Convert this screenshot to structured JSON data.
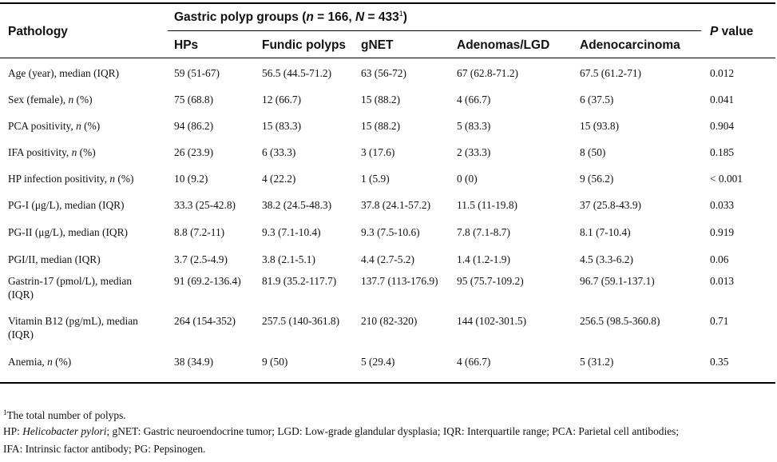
{
  "header": {
    "pathology": "Pathology",
    "group_title_prefix": "Gastric polyp groups (",
    "n_var": "n",
    "n_eq": " = 166, ",
    "N_var": "N",
    "N_eq": " = 433",
    "N_sup": "1",
    "group_title_suffix": ")",
    "p_var": "P",
    "p_rest": " value",
    "columns": [
      "HPs",
      "Fundic polyps",
      "gNET",
      "Adenomas/LGD",
      "Adenocarcinoma"
    ]
  },
  "rows": [
    {
      "label": "Age (year), median (IQR)",
      "label_var": "",
      "label_end": "",
      "values": [
        "59 (51-67)",
        "56.5 (44.5-71.2)",
        "63 (56-72)",
        "67 (62.8-71.2)",
        "67.5 (61.2-71)"
      ],
      "p": "0.012"
    },
    {
      "label": "Sex (female), ",
      "label_var": "n",
      "label_end": " (%)",
      "values": [
        "75 (68.8)",
        "12 (66.7)",
        "15 (88.2)",
        "4 (66.7)",
        "6 (37.5)"
      ],
      "p": "0.041"
    },
    {
      "label": "PCA positivity, ",
      "label_var": "n",
      "label_end": " (%)",
      "values": [
        "94 (86.2)",
        "15 (83.3)",
        "15 (88.2)",
        "5 (83.3)",
        "15 (93.8)"
      ],
      "p": "0.904"
    },
    {
      "label": "IFA positivity, ",
      "label_var": "n",
      "label_end": " (%)",
      "values": [
        "26 (23.9)",
        "6 (33.3)",
        "3 (17.6)",
        "2 (33.3)",
        "8 (50)"
      ],
      "p": "0.185"
    },
    {
      "label": "HP infection positivity, ",
      "label_var": "n",
      "label_end": " (%)",
      "values": [
        "10 (9.2)",
        "4 (22.2)",
        "1 (5.9)",
        "0 (0)",
        "9 (56.2)"
      ],
      "p": "< 0.001"
    },
    {
      "label": "PG-I (μg/L), median (IQR)",
      "label_var": "",
      "label_end": "",
      "values": [
        "33.3 (25-42.8)",
        "38.2 (24.5-48.3)",
        "37.8 (24.1-57.2)",
        "11.5 (11-19.8)",
        "37 (25.8-43.9)"
      ],
      "p": "0.033"
    },
    {
      "label": "PG-II (μg/L), median (IQR)",
      "label_var": "",
      "label_end": "",
      "values": [
        "8.8 (7.2-11)",
        "9.3 (7.1-10.4)",
        "9.3 (7.5-10.6)",
        "7.8 (7.1-8.7)",
        "8.1 (7-10.4)"
      ],
      "p": "0.919"
    },
    {
      "label": "PGI/II, median (IQR)",
      "label_var": "",
      "label_end": "",
      "values": [
        "3.7 (2.5-4.9)",
        "3.8 (2.1-5.1)",
        "4.4 (2.7-5.2)",
        "1.4 (1.2-1.9)",
        "4.5 (3.3-6.2)"
      ],
      "p": "0.06"
    },
    {
      "label": "Gastrin-17 (pmol/L), median",
      "label2": "(IQR)",
      "label_var": "",
      "label_end": "",
      "values": [
        "91 (69.2-136.4)",
        "81.9 (35.2-117.7)",
        "137.7 (113-176.9)",
        "95 (75.7-109.2)",
        "96.7 (59.1-137.1)"
      ],
      "p": "0.013"
    },
    {
      "label": "Vitamin B12 (pg/mL), median",
      "label2": "(IQR)",
      "label_var": "",
      "label_end": "",
      "values": [
        "264 (154-352)",
        "257.5 (140-361.8)",
        "210 (82-320)",
        "144 (102-301.5)",
        "256.5 (98.5-360.8)"
      ],
      "p": "0.71"
    },
    {
      "label": "Anemia, ",
      "label_var": "n",
      "label_end": " (%)",
      "values": [
        "38 (34.9)",
        "9 (50)",
        "5 (29.4)",
        "4 (66.7)",
        "5 (31.2)"
      ],
      "p": "0.35"
    }
  ],
  "footnotes": {
    "fn1_sup": "1",
    "fn1_text": "The total number of polyps.",
    "line2_a": "HP: ",
    "line2_italic": "Helicobacter pylori",
    "line2_b": "; gNET: Gastric neuroendocrine tumor; LGD: Low-grade glandular dysplasia; IQR: Interquartile range; PCA: Parietal cell antibodies;",
    "line3": "IFA: Intrinsic factor antibody; PG: Pepsinogen."
  }
}
